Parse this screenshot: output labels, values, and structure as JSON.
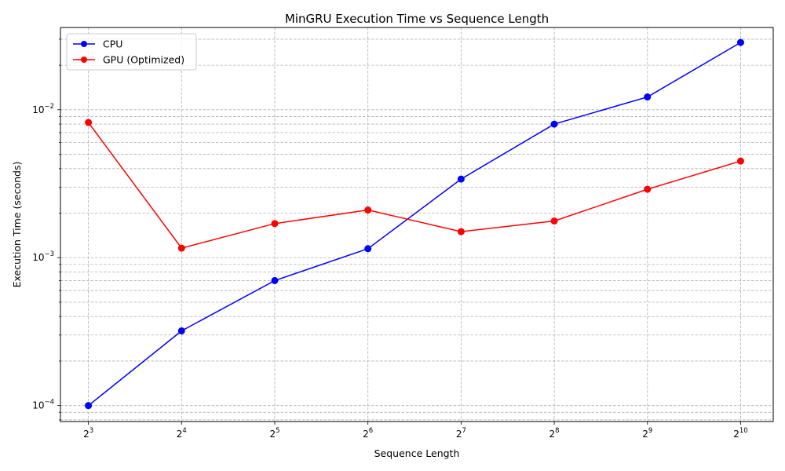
{
  "chart_data": {
    "type": "line",
    "title": "MinGRU Execution Time vs Sequence Length",
    "xlabel": "Sequence Length",
    "ylabel": "Execution Time (seconds)",
    "x_scale": "log2",
    "y_scale": "log10",
    "x": [
      8,
      16,
      32,
      64,
      128,
      256,
      512,
      1024
    ],
    "x_tick_labels": [
      {
        "base": "2",
        "exp": "3"
      },
      {
        "base": "2",
        "exp": "4"
      },
      {
        "base": "2",
        "exp": "5"
      },
      {
        "base": "2",
        "exp": "6"
      },
      {
        "base": "2",
        "exp": "7"
      },
      {
        "base": "2",
        "exp": "8"
      },
      {
        "base": "2",
        "exp": "9"
      },
      {
        "base": "2",
        "exp": "10"
      }
    ],
    "y_tick_labels": [
      {
        "value": 0.0001,
        "base": "10",
        "exp": "−4"
      },
      {
        "value": 0.001,
        "base": "10",
        "exp": "−3"
      },
      {
        "value": 0.01,
        "base": "10",
        "exp": "−2"
      }
    ],
    "ylim": [
      7.8e-05,
      0.036
    ],
    "grid": true,
    "grid_style": "dashed, major and minor",
    "legend_position": "top-left",
    "series": [
      {
        "name": "CPU",
        "color": "#0000ff",
        "marker": "circle",
        "values": [
          0.0001,
          0.00032,
          0.0007,
          0.00115,
          0.0034,
          0.008,
          0.0122,
          0.0285
        ]
      },
      {
        "name": "GPU (Optimized)",
        "color": "#ff0000",
        "marker": "circle",
        "values": [
          0.0082,
          0.00116,
          0.0017,
          0.0021,
          0.0015,
          0.00177,
          0.0029,
          0.0045
        ]
      }
    ]
  }
}
